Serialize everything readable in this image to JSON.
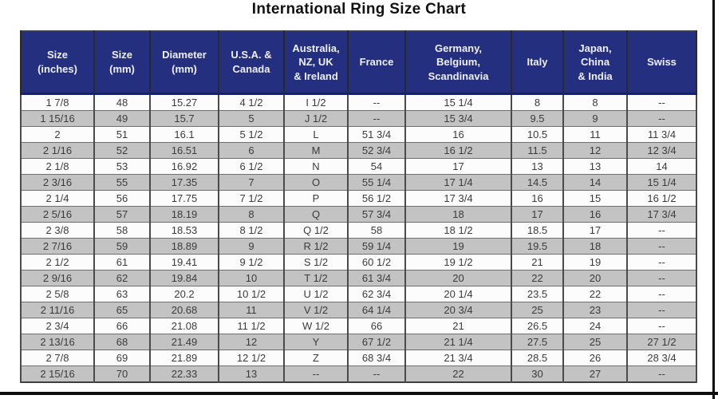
{
  "title": "International Ring Size Chart",
  "colors": {
    "header_background": "#252f80",
    "header_text": "#eef0fa",
    "row_alternate_gray": "#c3c3c3",
    "row_white": "#fcfcfc",
    "table_border": "#4a4a4a",
    "cell_text": "#3b3b3b",
    "frame_line": "#0d0d0d"
  },
  "chart_data": {
    "type": "table",
    "title": "International Ring Size Chart",
    "columns": [
      "Size\n(inches)",
      "Size\n(mm)",
      "Diameter\n(mm)",
      "U.S.A. &\nCanada",
      "Australia,\nNZ, UK\n& Ireland",
      "France",
      "Germany,\nBelgium,\nScandinavia",
      "Italy",
      "Japan,\nChina\n& India",
      "Swiss"
    ],
    "rows": [
      [
        "1 7/8",
        "48",
        "15.27",
        "4 1/2",
        "I 1/2",
        "--",
        "15 1/4",
        "8",
        "8",
        "--"
      ],
      [
        "1 15/16",
        "49",
        "15.7",
        "5",
        "J 1/2",
        "--",
        "15 3/4",
        "9.5",
        "9",
        "--"
      ],
      [
        "2",
        "51",
        "16.1",
        "5 1/2",
        "L",
        "51 3/4",
        "16",
        "10.5",
        "11",
        "11 3/4"
      ],
      [
        "2 1/16",
        "52",
        "16.51",
        "6",
        "M",
        "52 3/4",
        "16 1/2",
        "11.5",
        "12",
        "12 3/4"
      ],
      [
        "2 1/8",
        "53",
        "16.92",
        "6 1/2",
        "N",
        "54",
        "17",
        "13",
        "13",
        "14"
      ],
      [
        "2 3/16",
        "55",
        "17.35",
        "7",
        "O",
        "55 1/4",
        "17 1/4",
        "14.5",
        "14",
        "15 1/4"
      ],
      [
        "2 1/4",
        "56",
        "17.75",
        "7 1/2",
        "P",
        "56 1/2",
        "17 3/4",
        "16",
        "15",
        "16 1/2"
      ],
      [
        "2 5/16",
        "57",
        "18.19",
        "8",
        "Q",
        "57 3/4",
        "18",
        "17",
        "16",
        "17 3/4"
      ],
      [
        "2 3/8",
        "58",
        "18.53",
        "8 1/2",
        "Q 1/2",
        "58",
        "18 1/2",
        "18.5",
        "17",
        "--"
      ],
      [
        "2 7/16",
        "59",
        "18.89",
        "9",
        "R 1/2",
        "59 1/4",
        "19",
        "19.5",
        "18",
        "--"
      ],
      [
        "2 1/2",
        "61",
        "19.41",
        "9 1/2",
        "S 1/2",
        "60 1/2",
        "19 1/2",
        "21",
        "19",
        "--"
      ],
      [
        "2 9/16",
        "62",
        "19.84",
        "10",
        "T 1/2",
        "61 3/4",
        "20",
        "22",
        "20",
        "--"
      ],
      [
        "2 5/8",
        "63",
        "20.2",
        "10 1/2",
        "U 1/2",
        "62 3/4",
        "20 1/4",
        "23.5",
        "22",
        "--"
      ],
      [
        "2 11/16",
        "65",
        "20.68",
        "11",
        "V 1/2",
        "64 1/4",
        "20 3/4",
        "25",
        "23",
        "--"
      ],
      [
        "2 3/4",
        "66",
        "21.08",
        "11 1/2",
        "W 1/2",
        "66",
        "21",
        "26.5",
        "24",
        "--"
      ],
      [
        "2 13/16",
        "68",
        "21.49",
        "12",
        "Y",
        "67 1/2",
        "21 1/4",
        "27.5",
        "25",
        "27 1/2"
      ],
      [
        "2 7/8",
        "69",
        "21.89",
        "12 1/2",
        "Z",
        "68 3/4",
        "21 3/4",
        "28.5",
        "26",
        "28 3/4"
      ],
      [
        "2 15/16",
        "70",
        "22.33",
        "13",
        "--",
        "--",
        "22",
        "30",
        "27",
        "--"
      ]
    ]
  }
}
